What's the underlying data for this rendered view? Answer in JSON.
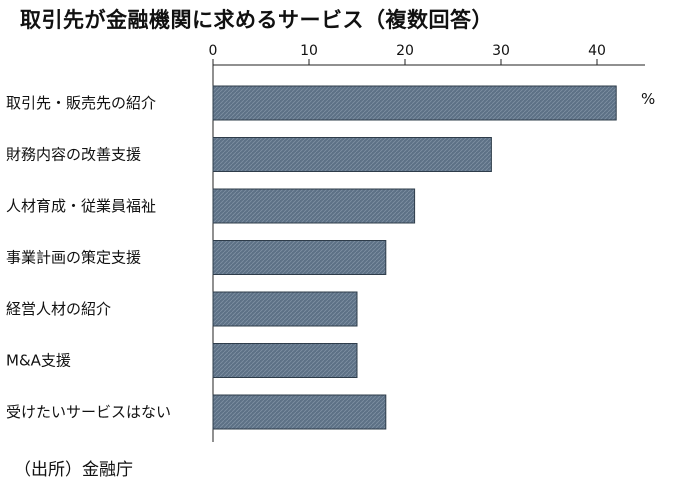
{
  "chart_data": {
    "type": "bar",
    "orientation": "horizontal",
    "title": "取引先が金融機関に求めるサービス（複数回答）",
    "unit": "%",
    "categories": [
      "取引先・販売先の紹介",
      "財務内容の改善支援",
      "人材育成・従業員福祉",
      "事業計画の策定支援",
      "経営人材の紹介",
      "M&A支援",
      "受けたいサービスはない"
    ],
    "values": [
      42,
      29,
      21,
      18,
      15,
      15,
      18
    ],
    "xlim": [
      0,
      45
    ],
    "xticks": [
      0,
      10,
      20,
      30,
      40
    ],
    "bar_color": "#5d7186",
    "source": "（出所）金融庁"
  }
}
